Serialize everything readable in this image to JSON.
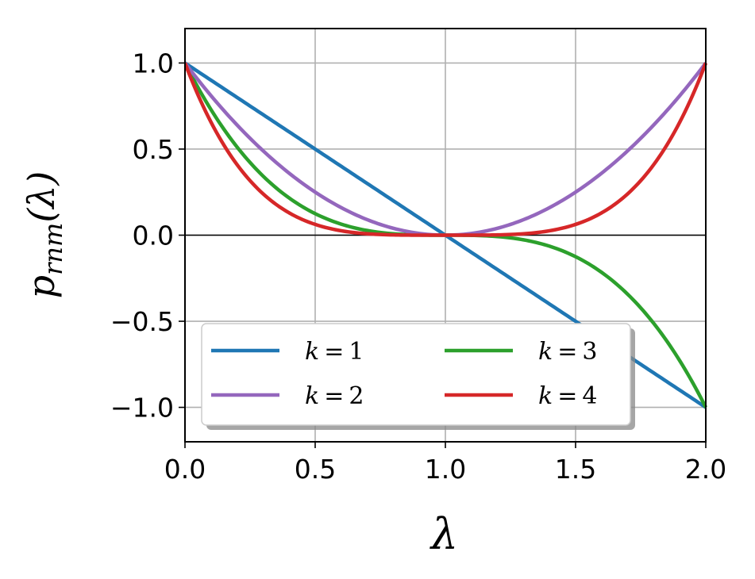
{
  "chart_data": {
    "type": "line",
    "xlabel": "λ",
    "ylabel": "p_rnm(λ)",
    "ylabel_parts": {
      "base": "p",
      "sub": "rnm",
      "suffix": "(λ)"
    },
    "xlim": [
      0,
      2
    ],
    "ylim": [
      -1.2,
      1.2
    ],
    "x_ticks": [
      0,
      0.5,
      1,
      1.5,
      2
    ],
    "x_tick_labels": [
      "0.0",
      "0.5",
      "1.0",
      "1.5",
      "2.0"
    ],
    "y_ticks": [
      1,
      0.5,
      0,
      -0.5,
      -1
    ],
    "y_tick_labels": [
      "1.0",
      "0.5",
      "0.0",
      "−0.5",
      "−1.0"
    ],
    "grid": true,
    "zero_line": true,
    "legend": {
      "placement": "lower-left",
      "columns": 2
    },
    "x": [
      0,
      0.1,
      0.2,
      0.3,
      0.4,
      0.5,
      0.6,
      0.7,
      0.8,
      0.9,
      1.0,
      1.1,
      1.2,
      1.3,
      1.4,
      1.5,
      1.6,
      1.7,
      1.8,
      1.9,
      2.0
    ],
    "series": [
      {
        "name": "k = 1",
        "k": "k",
        "eq": "=",
        "num": "1",
        "color": "#1f77b4",
        "values": [
          1,
          0.9,
          0.8,
          0.7,
          0.6,
          0.5,
          0.4,
          0.3,
          0.2,
          0.1,
          0,
          -0.1,
          -0.2,
          -0.3,
          -0.4,
          -0.5,
          -0.6,
          -0.7,
          -0.8,
          -0.9,
          -1
        ]
      },
      {
        "name": "k = 2",
        "k": "k",
        "eq": "=",
        "num": "2",
        "color": "#9467bd",
        "values": [
          1,
          0.81,
          0.64,
          0.49,
          0.36,
          0.25,
          0.16,
          0.09,
          0.04,
          0.01,
          0,
          0.01,
          0.04,
          0.09,
          0.16,
          0.25,
          0.36,
          0.49,
          0.64,
          0.81,
          1
        ]
      },
      {
        "name": "k = 3",
        "k": "k",
        "eq": "=",
        "num": "3",
        "color": "#2ca02c",
        "values": [
          1,
          0.729,
          0.512,
          0.343,
          0.216,
          0.125,
          0.064,
          0.027,
          0.008,
          0.001,
          0,
          -0.001,
          -0.008,
          -0.027,
          -0.064,
          -0.125,
          -0.216,
          -0.343,
          -0.512,
          -0.729,
          -1
        ]
      },
      {
        "name": "k = 4",
        "k": "k",
        "eq": "=",
        "num": "4",
        "color": "#d62728",
        "values": [
          1,
          0.6561,
          0.4096,
          0.2401,
          0.1296,
          0.0625,
          0.0256,
          0.0081,
          0.0016,
          0.0001,
          0,
          0.0001,
          0.0016,
          0.0081,
          0.0256,
          0.0625,
          0.1296,
          0.2401,
          0.4096,
          0.6561,
          1
        ]
      }
    ],
    "draw_order": [
      0,
      2,
      1,
      3
    ],
    "legend_order": [
      0,
      2,
      1,
      3
    ]
  }
}
